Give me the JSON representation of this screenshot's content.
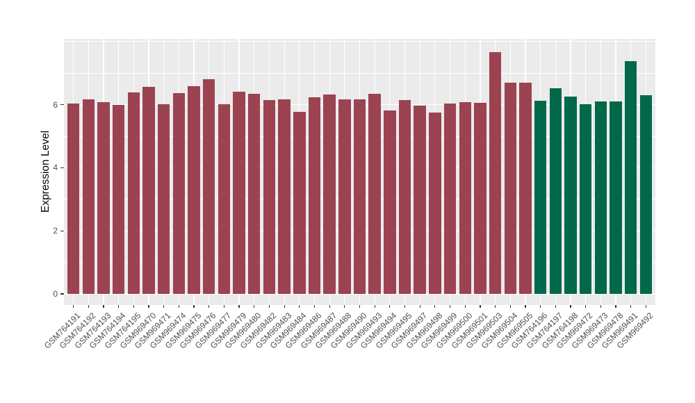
{
  "chart_data": {
    "type": "bar",
    "title": "",
    "xlabel": "",
    "ylabel": "Expression Level",
    "ylim": [
      0,
      8.1
    ],
    "yticks": [
      0,
      2,
      4,
      6
    ],
    "yticks_minor": [
      1,
      3,
      5,
      7
    ],
    "ytick_labels": [
      "0",
      "2",
      "4",
      "6"
    ],
    "grid": "on",
    "legend_position": "none",
    "panel_background": "#EBEBEB",
    "gridline_color": "#FFFFFF",
    "axis_text_color": "#4D4D4D",
    "group_colors": [
      "#9B4351",
      "#016849"
    ],
    "categories": [
      "GSM764191",
      "GSM764192",
      "GSM764193",
      "GSM764194",
      "GSM764195",
      "GSM969470",
      "GSM969471",
      "GSM969474",
      "GSM969475",
      "GSM969476",
      "GSM969477",
      "GSM969479",
      "GSM969480",
      "GSM969482",
      "GSM969483",
      "GSM969484",
      "GSM969486",
      "GSM969487",
      "GSM969488",
      "GSM969490",
      "GSM969493",
      "GSM969494",
      "GSM969495",
      "GSM969497",
      "GSM969498",
      "GSM969499",
      "GSM969500",
      "GSM969501",
      "GSM969503",
      "GSM969504",
      "GSM969505",
      "GSM764196",
      "GSM764197",
      "GSM764198",
      "GSM969472",
      "GSM969473",
      "GSM969478",
      "GSM969491",
      "GSM969492"
    ],
    "values": [
      6.03,
      6.17,
      6.08,
      5.99,
      6.39,
      6.56,
      6.02,
      6.37,
      6.59,
      6.81,
      6.02,
      6.42,
      6.34,
      6.15,
      6.17,
      5.76,
      6.24,
      6.32,
      6.17,
      6.17,
      6.35,
      5.81,
      6.14,
      5.96,
      5.74,
      6.03,
      6.07,
      6.06,
      7.67,
      6.7,
      6.7,
      6.12,
      6.51,
      6.26,
      6.02,
      6.1,
      6.1,
      7.37,
      6.31
    ],
    "bar_group_index": [
      0,
      0,
      0,
      0,
      0,
      0,
      0,
      0,
      0,
      0,
      0,
      0,
      0,
      0,
      0,
      0,
      0,
      0,
      0,
      0,
      0,
      0,
      0,
      0,
      0,
      0,
      0,
      0,
      0,
      0,
      0,
      1,
      1,
      1,
      1,
      1,
      1,
      1,
      1
    ]
  }
}
